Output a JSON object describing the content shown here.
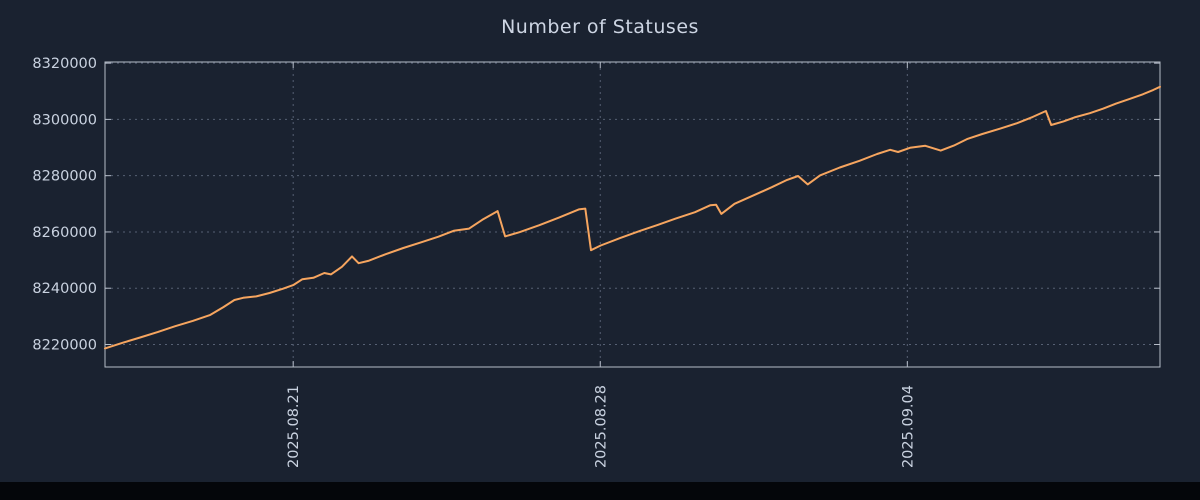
{
  "chart_data": {
    "type": "line",
    "title": "Number of Statuses",
    "xlabel": "",
    "ylabel": "",
    "grid": true,
    "legend": "none",
    "x_tick_labels_rotated": true,
    "x_range": [
      0,
      24.05
    ],
    "y_range": [
      8212000,
      8320400
    ],
    "y_ticks": [
      8220000,
      8240000,
      8260000,
      8280000,
      8300000,
      8320000
    ],
    "x_ticks": [
      {
        "pos": 4.29,
        "label": "2025.08.21"
      },
      {
        "pos": 11.29,
        "label": "2025.08.28"
      },
      {
        "pos": 18.29,
        "label": "2025.09.04"
      }
    ],
    "points": [
      [
        0,
        8218600
      ],
      [
        0.4,
        8220600
      ],
      [
        0.8,
        8222500
      ],
      [
        1.2,
        8224400
      ],
      [
        1.6,
        8226500
      ],
      [
        2.0,
        8228400
      ],
      [
        2.4,
        8230500
      ],
      [
        2.7,
        8233300
      ],
      [
        2.95,
        8235800
      ],
      [
        3.15,
        8236600
      ],
      [
        3.45,
        8237100
      ],
      [
        3.75,
        8238300
      ],
      [
        4.05,
        8239800
      ],
      [
        4.29,
        8241100
      ],
      [
        4.5,
        8243200
      ],
      [
        4.75,
        8243700
      ],
      [
        5.0,
        8245400
      ],
      [
        5.15,
        8244900
      ],
      [
        5.4,
        8247600
      ],
      [
        5.63,
        8251300
      ],
      [
        5.78,
        8248900
      ],
      [
        6.0,
        8249700
      ],
      [
        6.4,
        8252100
      ],
      [
        6.8,
        8254300
      ],
      [
        7.2,
        8256300
      ],
      [
        7.6,
        8258300
      ],
      [
        7.95,
        8260400
      ],
      [
        8.3,
        8261200
      ],
      [
        8.6,
        8264300
      ],
      [
        8.95,
        8267400
      ],
      [
        9.12,
        8258400
      ],
      [
        9.45,
        8259900
      ],
      [
        9.9,
        8262400
      ],
      [
        10.35,
        8265100
      ],
      [
        10.8,
        8268000
      ],
      [
        10.95,
        8268300
      ],
      [
        11.08,
        8253500
      ],
      [
        11.3,
        8255200
      ],
      [
        11.75,
        8257900
      ],
      [
        12.2,
        8260400
      ],
      [
        12.6,
        8262500
      ],
      [
        13.0,
        8264700
      ],
      [
        13.45,
        8267000
      ],
      [
        13.8,
        8269500
      ],
      [
        13.93,
        8269700
      ],
      [
        14.05,
        8266400
      ],
      [
        14.35,
        8270000
      ],
      [
        14.8,
        8273100
      ],
      [
        15.2,
        8275900
      ],
      [
        15.55,
        8278500
      ],
      [
        15.8,
        8279900
      ],
      [
        16.02,
        8276900
      ],
      [
        16.3,
        8280100
      ],
      [
        16.75,
        8282900
      ],
      [
        17.2,
        8285300
      ],
      [
        17.6,
        8287700
      ],
      [
        17.9,
        8289200
      ],
      [
        18.08,
        8288400
      ],
      [
        18.35,
        8289900
      ],
      [
        18.7,
        8290600
      ],
      [
        19.05,
        8288900
      ],
      [
        19.35,
        8290700
      ],
      [
        19.65,
        8293000
      ],
      [
        20.0,
        8294800
      ],
      [
        20.4,
        8296700
      ],
      [
        20.8,
        8298700
      ],
      [
        21.15,
        8300900
      ],
      [
        21.45,
        8303000
      ],
      [
        21.57,
        8298000
      ],
      [
        21.85,
        8299300
      ],
      [
        22.1,
        8300700
      ],
      [
        22.45,
        8302200
      ],
      [
        22.75,
        8303800
      ],
      [
        23.05,
        8305600
      ],
      [
        23.35,
        8307200
      ],
      [
        23.65,
        8308900
      ],
      [
        23.9,
        8310500
      ],
      [
        24.05,
        8311600
      ]
    ]
  },
  "colors": {
    "background": "#1a2230",
    "line": "#f6a55f",
    "grid": "#566073",
    "text": "#c9d2e0",
    "border": "#b6bdc9",
    "footer": "#04060a"
  }
}
